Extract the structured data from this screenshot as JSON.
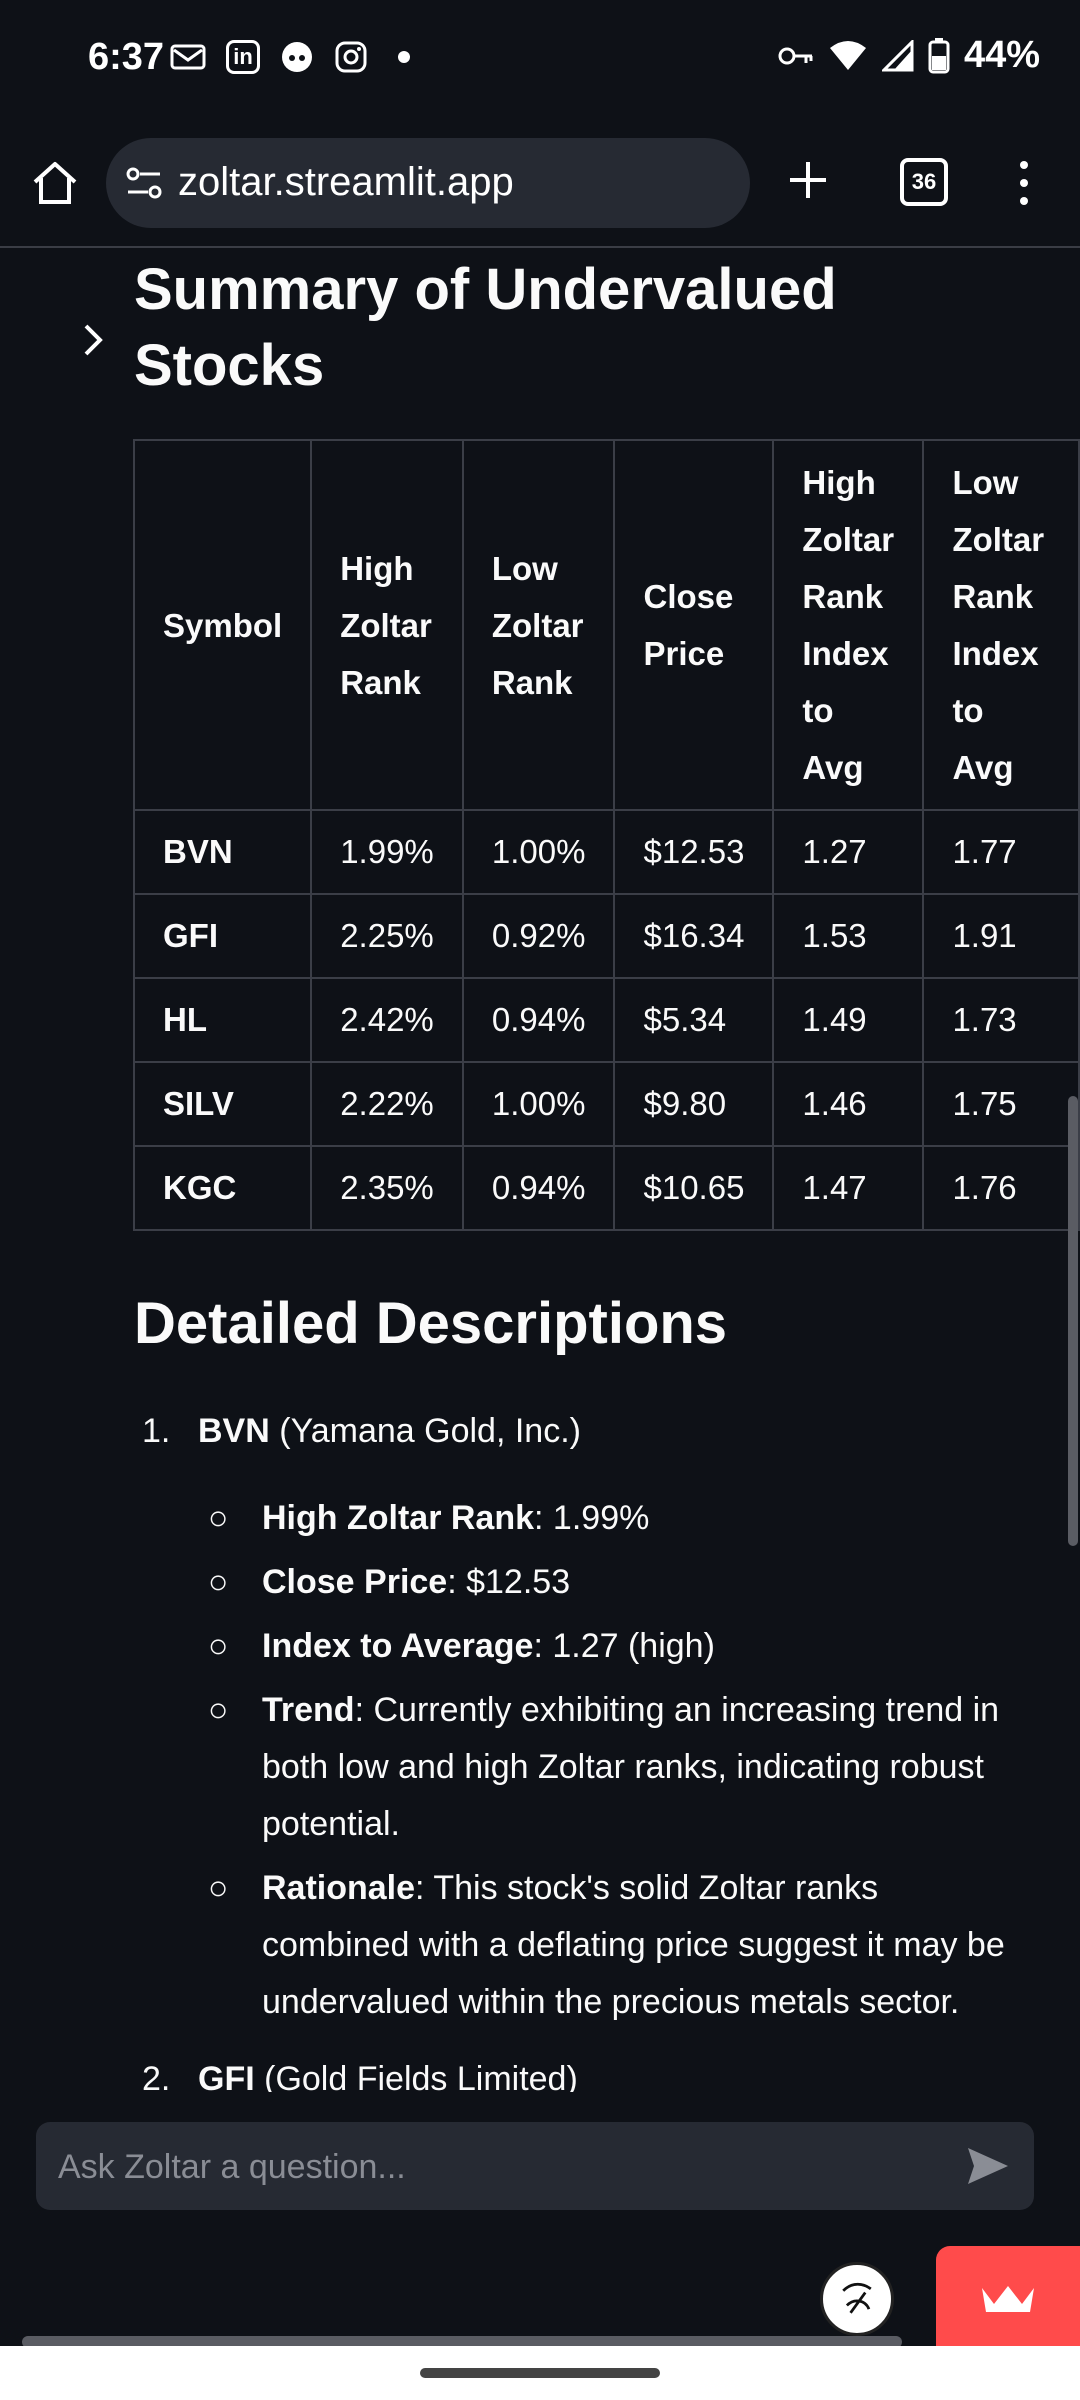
{
  "status_bar": {
    "time": "6:37",
    "app_icons": [
      "gmail-like-icon",
      "linkedin-icon",
      "reddit-icon",
      "instagram-icon"
    ],
    "linkedin_glyph": "in",
    "battery": "44%"
  },
  "browser": {
    "url": "zoltar.streamlit.app",
    "tab_count": "36"
  },
  "summary": {
    "title": "Summary of Undervalued Stocks",
    "headers": [
      "Symbol",
      "High Zoltar Rank",
      "Low Zoltar Rank",
      "Close Price",
      "High Zoltar Rank Index to Avg",
      "Low Zoltar Rank Index to Avg"
    ],
    "rows": [
      [
        "BVN",
        "1.99%",
        "1.00%",
        "$12.53",
        "1.27",
        "1.77"
      ],
      [
        "GFI",
        "2.25%",
        "0.92%",
        "$16.34",
        "1.53",
        "1.91"
      ],
      [
        "HL",
        "2.42%",
        "0.94%",
        "$5.34",
        "1.49",
        "1.73"
      ],
      [
        "SILV",
        "2.22%",
        "1.00%",
        "$9.80",
        "1.46",
        "1.75"
      ],
      [
        "KGC",
        "2.35%",
        "0.94%",
        "$10.65",
        "1.47",
        "1.76"
      ]
    ]
  },
  "details": {
    "title": "Detailed Descriptions",
    "items": [
      {
        "number": "1.",
        "symbol": "BVN",
        "name": "(Yamana Gold, Inc.)",
        "bullet": "○",
        "points": [
          {
            "label": "High Zoltar Rank",
            "sep": ":",
            "text": " 1.99%"
          },
          {
            "label": "Close Price",
            "sep": ":",
            "text": " $12.53"
          },
          {
            "label": "Index to Average",
            "sep": ":",
            "text": " 1.27 (high)"
          },
          {
            "label": "Trend",
            "sep": ":",
            "text": " Currently exhibiting an increasing trend in both low and high Zoltar ranks, indicating robust potential."
          },
          {
            "label": "Rationale",
            "sep": ":",
            "text": " This stock's solid Zoltar ranks combined with a deflating price suggest it may be undervalued within the precious metals sector."
          }
        ]
      },
      {
        "number": "2.",
        "symbol": "GFI",
        "name": "(Gold Fields Limited)"
      }
    ]
  },
  "chat": {
    "placeholder": "Ask Zoltar a question..."
  },
  "colors": {
    "background": "#0e1117",
    "surface": "#262a33",
    "border": "#3b3e47",
    "streamlit_badge": "#ff4b4b"
  }
}
